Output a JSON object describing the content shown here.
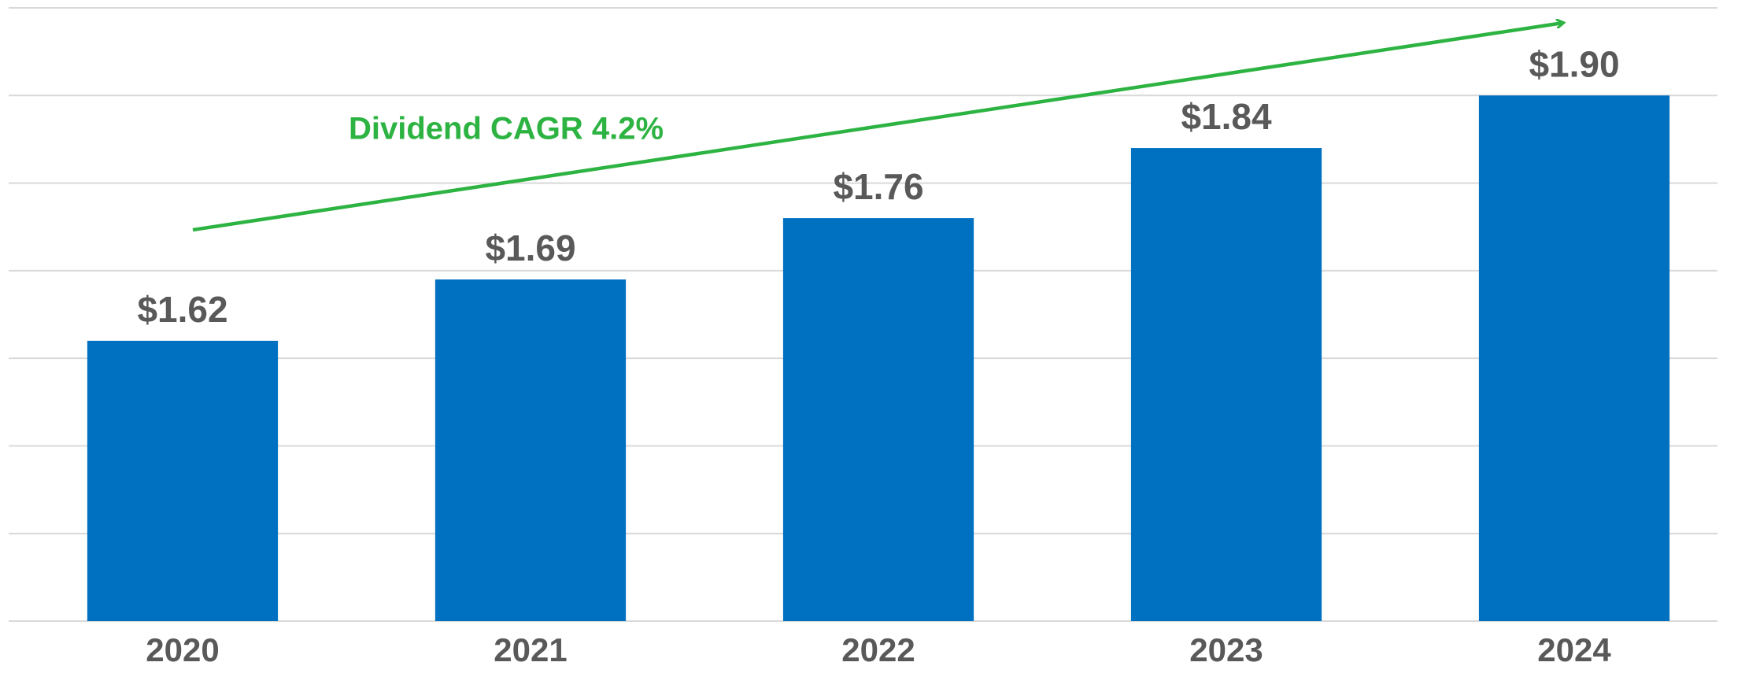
{
  "chart_data": {
    "type": "bar",
    "annotation": "Dividend CAGR 4.2%",
    "categories": [
      "2020",
      "2021",
      "2022",
      "2023",
      "2024"
    ],
    "values": [
      1.62,
      1.69,
      1.76,
      1.84,
      1.9
    ],
    "value_labels": [
      "$1.62",
      "$1.69",
      "$1.76",
      "$1.84",
      "$1.90"
    ],
    "color": "#0070c0",
    "ylim": [
      1.3,
      2.0
    ],
    "yticks": [
      1.3,
      1.4,
      1.5,
      1.6,
      1.7,
      1.8,
      1.9,
      2.0
    ],
    "grid": true
  }
}
